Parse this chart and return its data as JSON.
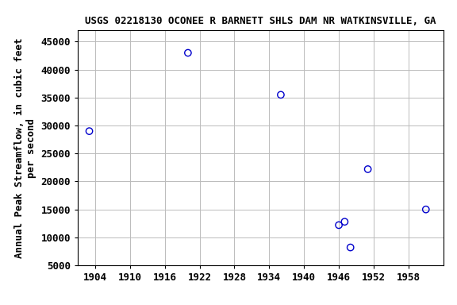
{
  "title": "USGS 02218130 OCONEE R BARNETT SHLS DAM NR WATKINSVILLE, GA",
  "xlabel": "",
  "ylabel": "Annual Peak Streamflow, in cubic feet\nper second",
  "years": [
    1903,
    1920,
    1936,
    1946,
    1947,
    1948,
    1951,
    1961
  ],
  "flows": [
    29000,
    43000,
    35500,
    12200,
    12800,
    8200,
    22200,
    15000
  ],
  "xlim": [
    1901,
    1964
  ],
  "ylim": [
    5000,
    47000
  ],
  "xticks": [
    1904,
    1910,
    1916,
    1922,
    1928,
    1934,
    1940,
    1946,
    1952,
    1958
  ],
  "yticks": [
    5000,
    10000,
    15000,
    20000,
    25000,
    30000,
    35000,
    40000,
    45000
  ],
  "marker_color": "#0000cc",
  "marker_facecolor": "none",
  "marker_size": 6,
  "marker_linewidth": 1.0,
  "bg_color": "#ffffff",
  "grid_color": "#bbbbbb",
  "title_fontsize": 9,
  "label_fontsize": 9,
  "tick_fontsize": 9,
  "font_family": "monospace"
}
